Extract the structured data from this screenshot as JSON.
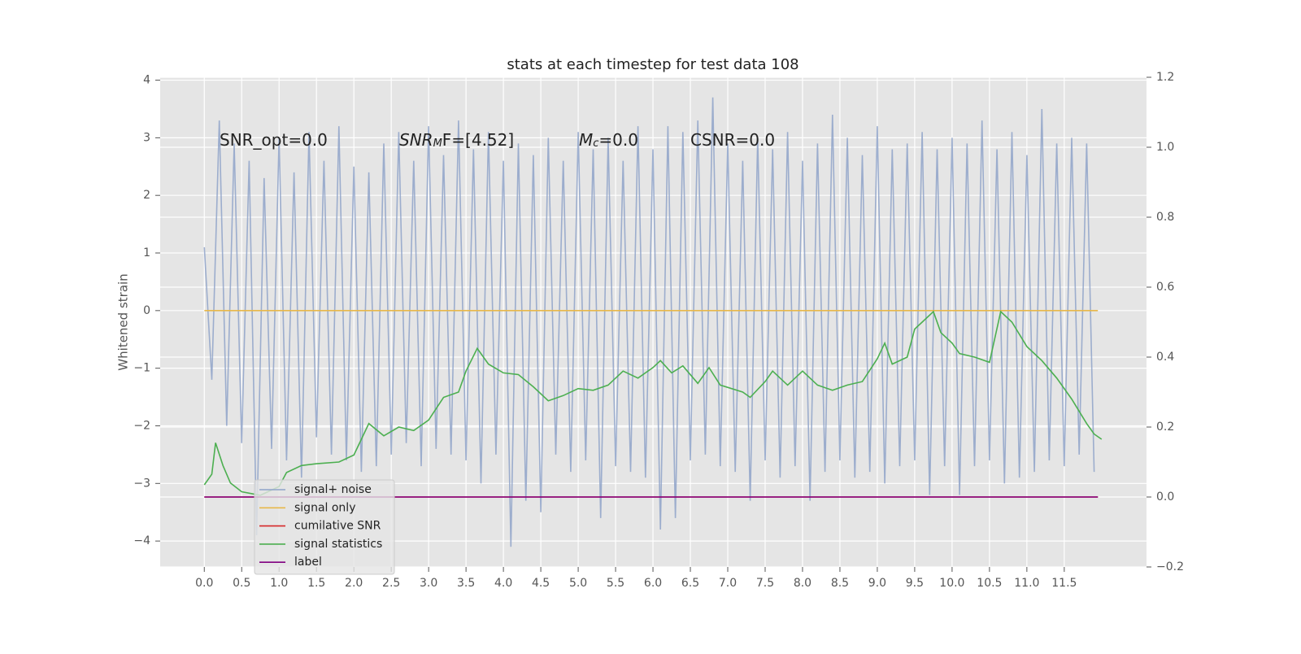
{
  "chart_data": {
    "type": "line",
    "title": "stats at each timestep for test data 108",
    "ylabel": "Whitened strain",
    "xlim": [
      -0.59,
      12.6
    ],
    "ylim": [
      -4.45,
      4.05
    ],
    "y2lim": [
      -0.2,
      1.2
    ],
    "xticks": [
      {
        "value": 0,
        "label": "0.0"
      },
      0.5,
      {
        "value": 1,
        "label": "1.0"
      },
      1.5,
      {
        "value": 2,
        "label": "2.0"
      },
      2.5,
      {
        "value": 3,
        "label": "3.0"
      },
      3.5,
      {
        "value": 4,
        "label": "4.0"
      },
      4.5,
      {
        "value": 5,
        "label": "5.0"
      },
      5.5,
      {
        "value": 6,
        "label": "6.0"
      },
      6.5,
      {
        "value": 7,
        "label": "7.0"
      },
      7.5,
      {
        "value": 8,
        "label": "8.0"
      },
      8.5,
      {
        "value": 9,
        "label": "9.0"
      },
      9.5,
      {
        "value": 10,
        "label": "10.0"
      },
      10.5,
      {
        "value": 11,
        "label": "11.0"
      },
      11.5
    ],
    "yticks": [
      {
        "value": -4,
        "label": "−4"
      },
      {
        "value": -3,
        "label": "−3"
      },
      {
        "value": -2,
        "label": "−2"
      },
      {
        "value": -1,
        "label": "−1"
      },
      0,
      1,
      2,
      3,
      4
    ],
    "y2ticks": [
      {
        "value": -0.2,
        "label": "−0.2"
      },
      {
        "value": 0,
        "label": "0.0"
      },
      0.2,
      0.4,
      0.6,
      0.8,
      {
        "value": 1,
        "label": "1.0"
      },
      1.2
    ],
    "grid": true,
    "legend": true,
    "annotations": [
      [
        "SNR_opt=0.0"
      ],
      [
        "SNR",
        "M",
        "F=[4.52]"
      ],
      [
        "M",
        "c",
        "=0.0"
      ],
      [
        "CSNR=0.0"
      ]
    ],
    "series": [
      {
        "name": "signal+ noise",
        "color": "#8fa3c9",
        "x": [
          0,
          0.1,
          0.2,
          0.3,
          0.4,
          0.5,
          0.6,
          0.7,
          0.8,
          0.9,
          1,
          1.1,
          1.2,
          1.3,
          1.4,
          1.5,
          1.6,
          1.7,
          1.8,
          1.9,
          2,
          2.1,
          2.2,
          2.3,
          2.4,
          2.5,
          2.6,
          2.7,
          2.8,
          2.9,
          3,
          3.1,
          3.2,
          3.3,
          3.4,
          3.5,
          3.6,
          3.7,
          3.8,
          3.9,
          4,
          4.1,
          4.2,
          4.3,
          4.4,
          4.5,
          4.6,
          4.7,
          4.8,
          4.9,
          5,
          5.1,
          5.2,
          5.3,
          5.4,
          5.5,
          5.6,
          5.7,
          5.8,
          5.9,
          6,
          6.1,
          6.2,
          6.3,
          6.4,
          6.5,
          6.6,
          6.7,
          6.8,
          6.9,
          7,
          7.1,
          7.2,
          7.3,
          7.4,
          7.5,
          7.6,
          7.7,
          7.8,
          7.9,
          8,
          8.1,
          8.2,
          8.3,
          8.4,
          8.5,
          8.6,
          8.7,
          8.8,
          8.9,
          9,
          9.1,
          9.2,
          9.3,
          9.4,
          9.5,
          9.6,
          9.7,
          9.8,
          9.9,
          10,
          10.1,
          10.2,
          10.3,
          10.4,
          10.5,
          10.6,
          10.7,
          10.8,
          10.9,
          11,
          11.1,
          11.2,
          11.3,
          11.4,
          11.5,
          11.6,
          11.7,
          11.8,
          11.9
        ],
        "values": [
          1.1,
          -1.2,
          3.3,
          -2.0,
          2.9,
          -2.3,
          2.6,
          -3.9,
          2.3,
          -2.4,
          3.0,
          -2.6,
          2.4,
          -2.9,
          3.1,
          -2.2,
          2.6,
          -2.5,
          3.2,
          -2.6,
          2.5,
          -2.8,
          2.4,
          -2.7,
          2.9,
          -2.5,
          3.1,
          -2.3,
          2.6,
          -2.7,
          3.2,
          -2.4,
          2.7,
          -2.5,
          3.3,
          -2.6,
          2.8,
          -3.0,
          3.1,
          -2.5,
          2.6,
          -4.1,
          2.9,
          -3.3,
          2.7,
          -3.5,
          3.0,
          -2.5,
          2.6,
          -2.8,
          3.1,
          -2.6,
          2.8,
          -3.6,
          3.0,
          -2.7,
          2.6,
          -2.8,
          3.2,
          -2.9,
          2.8,
          -3.8,
          3.2,
          -3.6,
          3.1,
          -2.6,
          3.3,
          -2.5,
          3.7,
          -2.7,
          2.9,
          -2.8,
          2.6,
          -3.3,
          3.0,
          -2.6,
          2.8,
          -2.9,
          3.1,
          -2.7,
          2.6,
          -3.3,
          2.9,
          -2.8,
          3.4,
          -2.6,
          3.0,
          -2.9,
          2.7,
          -2.8,
          3.2,
          -3.0,
          2.8,
          -2.7,
          2.9,
          -2.6,
          3.1,
          -3.2,
          2.8,
          -2.7,
          3.0,
          -3.2,
          2.9,
          -2.7,
          3.3,
          -2.6,
          2.8,
          -3.0,
          3.1,
          -2.9,
          2.7,
          -2.8,
          3.5,
          -2.6,
          2.9,
          -2.7,
          3.0,
          -2.5,
          2.9,
          -2.8
        ]
      },
      {
        "name": "signal only",
        "color": "#e8b84a",
        "x": [
          0,
          11.95
        ],
        "values": [
          0,
          0
        ]
      },
      {
        "name": "cumilative SNR",
        "color": "#d62728",
        "axis": "y2",
        "x": [
          0,
          11.95
        ],
        "values": [
          0,
          0
        ]
      },
      {
        "name": "signal statistics",
        "color": "#4caf50",
        "axis": "y2",
        "x": [
          0,
          0.1,
          0.15,
          0.25,
          0.35,
          0.5,
          0.75,
          1.0,
          1.1,
          1.3,
          1.5,
          1.8,
          2.0,
          2.2,
          2.4,
          2.6,
          2.8,
          3.0,
          3.2,
          3.4,
          3.5,
          3.65,
          3.8,
          4.0,
          4.2,
          4.4,
          4.6,
          4.8,
          5.0,
          5.2,
          5.4,
          5.6,
          5.8,
          6.0,
          6.1,
          6.25,
          6.4,
          6.6,
          6.75,
          6.9,
          7.2,
          7.3,
          7.5,
          7.6,
          7.8,
          8.0,
          8.2,
          8.4,
          8.6,
          8.8,
          9.0,
          9.1,
          9.2,
          9.4,
          9.5,
          9.6,
          9.75,
          9.85,
          10.0,
          10.1,
          10.3,
          10.5,
          10.65,
          10.8,
          11.0,
          11.2,
          11.4,
          11.6,
          11.8,
          11.9,
          12.0
        ],
        "values": [
          0.035,
          0.065,
          0.155,
          0.09,
          0.04,
          0.015,
          0.005,
          0.03,
          0.07,
          0.09,
          0.095,
          0.1,
          0.12,
          0.21,
          0.175,
          0.2,
          0.19,
          0.22,
          0.285,
          0.3,
          0.36,
          0.425,
          0.38,
          0.355,
          0.35,
          0.315,
          0.275,
          0.29,
          0.31,
          0.305,
          0.32,
          0.36,
          0.34,
          0.37,
          0.39,
          0.355,
          0.375,
          0.325,
          0.37,
          0.32,
          0.3,
          0.285,
          0.33,
          0.36,
          0.32,
          0.36,
          0.32,
          0.305,
          0.32,
          0.33,
          0.395,
          0.44,
          0.38,
          0.4,
          0.48,
          0.5,
          0.53,
          0.47,
          0.44,
          0.41,
          0.4,
          0.385,
          0.53,
          0.5,
          0.43,
          0.39,
          0.34,
          0.28,
          0.21,
          0.18,
          0.165
        ]
      },
      {
        "name": "label",
        "color": "#800080",
        "axis": "y2",
        "x": [
          0,
          11.95
        ],
        "values": [
          0,
          0
        ]
      }
    ]
  }
}
